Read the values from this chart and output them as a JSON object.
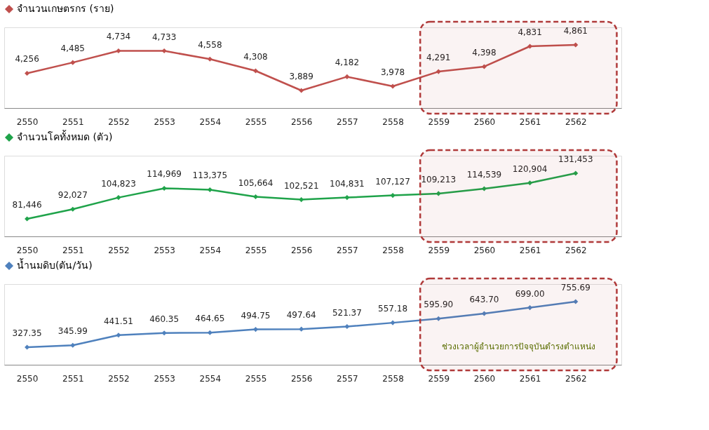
{
  "chart_data": [
    {
      "type": "line",
      "x": [
        2550,
        2551,
        2552,
        2553,
        2554,
        2555,
        2556,
        2557,
        2558,
        2559,
        2560,
        2561,
        2562
      ],
      "xlim": [
        2549.5,
        2563
      ],
      "xticks": [
        2550,
        2551,
        2552,
        2553,
        2554,
        2555,
        2556,
        2557,
        2558,
        2559,
        2560,
        2561,
        2562
      ],
      "legend": "top",
      "marker": "diamond",
      "grid": false,
      "series": [
        {
          "name": "จำนวนเกษตรกร (ราย)",
          "color": "#c0504d",
          "values": [
            4256,
            4485,
            4734,
            4733,
            4558,
            4308,
            3889,
            4182,
            3978,
            4291,
            4398,
            4831,
            4861
          ],
          "value_labels": [
            "4,256",
            "4,485",
            "4,734",
            "4,733",
            "4,558",
            "4,308",
            "3,889",
            "4,182",
            "3,978",
            "4,291",
            "4,398",
            "4,831",
            "4,861"
          ]
        }
      ],
      "bands": [
        {
          "axis": "x",
          "from": 2558.6,
          "to": 2562.9,
          "color": "#b03a3a"
        }
      ]
    },
    {
      "type": "line",
      "x": [
        2550,
        2551,
        2552,
        2553,
        2554,
        2555,
        2556,
        2557,
        2558,
        2559,
        2560,
        2561,
        2562
      ],
      "xlim": [
        2549.5,
        2563
      ],
      "xticks": [
        2550,
        2551,
        2552,
        2553,
        2554,
        2555,
        2556,
        2557,
        2558,
        2559,
        2560,
        2561,
        2562
      ],
      "legend": "top",
      "marker": "diamond",
      "grid": false,
      "series": [
        {
          "name": "จำนวนโคทั้งหมด (ตัว)",
          "color": "#1fa34a",
          "values": [
            81446,
            92027,
            104823,
            114969,
            113375,
            105664,
            102521,
            104831,
            107127,
            109213,
            114539,
            120904,
            131453
          ],
          "value_labels": [
            "81,446",
            "92,027",
            "104,823",
            "114,969",
            "113,375",
            "105,664",
            "102,521",
            "104,831",
            "107,127",
            "109,213",
            "114,539",
            "120,904",
            "131,453"
          ]
        }
      ],
      "bands": [
        {
          "axis": "x",
          "from": 2558.6,
          "to": 2562.9,
          "color": "#b03a3a"
        }
      ]
    },
    {
      "type": "line",
      "x": [
        2550,
        2551,
        2552,
        2553,
        2554,
        2555,
        2556,
        2557,
        2558,
        2559,
        2560,
        2561,
        2562
      ],
      "xlim": [
        2549.5,
        2563
      ],
      "xticks": [
        2550,
        2551,
        2552,
        2553,
        2554,
        2555,
        2556,
        2557,
        2558,
        2559,
        2560,
        2561,
        2562
      ],
      "legend": "top",
      "marker": "diamond",
      "grid": false,
      "series": [
        {
          "name": "น้ำนมดิบ(ตัน/วัน)",
          "color": "#4f81bd",
          "values": [
            327.35,
            345.99,
            441.51,
            460.35,
            464.65,
            494.75,
            497.64,
            521.37,
            557.18,
            595.9,
            643.7,
            699.0,
            755.69
          ],
          "value_labels": [
            "327.35",
            "345.99",
            "441.51",
            "460.35",
            "464.65",
            "494.75",
            "497.64",
            "521.37",
            "557.18",
            "595.90",
            "643.70",
            "699.00",
            "755.69"
          ]
        }
      ],
      "bands": [
        {
          "axis": "x",
          "from": 2558.6,
          "to": 2562.9,
          "color": "#b03a3a",
          "label": "ช่วงเวลาผู้อำนวยการปัจจุบันดำรงตำแหน่ง"
        }
      ]
    }
  ]
}
